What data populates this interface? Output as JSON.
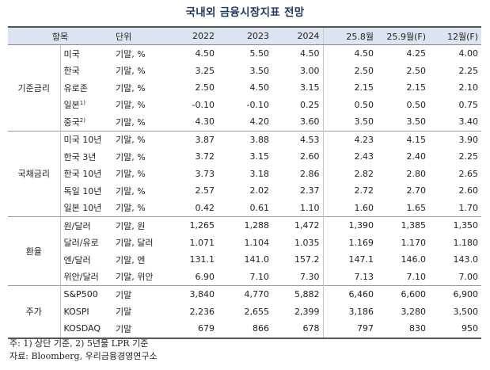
{
  "title": "국내외 금융시장지표 전망",
  "header": {
    "item": "항목",
    "unit": "단위",
    "cols": [
      "2022",
      "2023",
      "2024",
      "25.8월",
      "25.9월(F)",
      "12월(F)"
    ]
  },
  "groups": [
    {
      "name": "기준금리",
      "rows": [
        {
          "item": "미국",
          "sup": "",
          "unit": "기말, %",
          "values": [
            "4.50",
            "5.50",
            "4.50",
            "4.50",
            "4.25",
            "4.00"
          ]
        },
        {
          "item": "한국",
          "sup": "",
          "unit": "기말, %",
          "values": [
            "3.25",
            "3.50",
            "3.00",
            "2.50",
            "2.50",
            "2.25"
          ]
        },
        {
          "item": "유로존",
          "sup": "",
          "unit": "기말, %",
          "values": [
            "2.50",
            "4.50",
            "3.15",
            "2.15",
            "2.15",
            "2.10"
          ]
        },
        {
          "item": "일본",
          "sup": "1)",
          "unit": "기말, %",
          "values": [
            "-0.10",
            "-0.10",
            "0.25",
            "0.50",
            "0.50",
            "0.75"
          ]
        },
        {
          "item": "중국",
          "sup": "2)",
          "unit": "기말, %",
          "values": [
            "4.30",
            "4.20",
            "3.60",
            "3.50",
            "3.50",
            "3.40"
          ]
        }
      ]
    },
    {
      "name": "국채금리",
      "rows": [
        {
          "item": "미국 10년",
          "sup": "",
          "unit": "기말, %",
          "values": [
            "3.87",
            "3.88",
            "4.53",
            "4.23",
            "4.15",
            "3.90"
          ]
        },
        {
          "item": "한국 3년",
          "sup": "",
          "unit": "기말, %",
          "values": [
            "3.72",
            "3.15",
            "2.60",
            "2.43",
            "2.40",
            "2.25"
          ]
        },
        {
          "item": "한국 10년",
          "sup": "",
          "unit": "기말, %",
          "values": [
            "3.73",
            "3.18",
            "2.86",
            "2.82",
            "2.80",
            "2.65"
          ]
        },
        {
          "item": "독일 10년",
          "sup": "",
          "unit": "기말, %",
          "values": [
            "2.57",
            "2.02",
            "2.37",
            "2.72",
            "2.70",
            "2.60"
          ]
        },
        {
          "item": "일본 10년",
          "sup": "",
          "unit": "기말, %",
          "values": [
            "0.42",
            "0.61",
            "1.10",
            "1.60",
            "1.65",
            "1.70"
          ]
        }
      ]
    },
    {
      "name": "환율",
      "rows": [
        {
          "item": "원/달러",
          "sup": "",
          "unit": "기말, 원",
          "values": [
            "1,265",
            "1,288",
            "1,472",
            "1,390",
            "1,385",
            "1,350"
          ]
        },
        {
          "item": "달러/유로",
          "sup": "",
          "unit": "기말, 달러",
          "values": [
            "1.071",
            "1.104",
            "1.035",
            "1.169",
            "1.170",
            "1.180"
          ]
        },
        {
          "item": "엔/달러",
          "sup": "",
          "unit": "기말, 엔",
          "values": [
            "131.1",
            "141.0",
            "157.2",
            "147.1",
            "146.0",
            "143.0"
          ]
        },
        {
          "item": "위안/달러",
          "sup": "",
          "unit": "기말, 위안",
          "values": [
            "6.90",
            "7.10",
            "7.30",
            "7.13",
            "7.10",
            "7.00"
          ]
        }
      ]
    },
    {
      "name": "주가",
      "rows": [
        {
          "item": "S&P500",
          "sup": "",
          "unit": "기말",
          "values": [
            "3,840",
            "4,770",
            "5,882",
            "6,460",
            "6,600",
            "6,900"
          ]
        },
        {
          "item": "KOSPI",
          "sup": "",
          "unit": "기말",
          "values": [
            "2,236",
            "2,655",
            "2,399",
            "3,186",
            "3,280",
            "3,500"
          ]
        },
        {
          "item": "KOSDAQ",
          "sup": "",
          "unit": "기말",
          "values": [
            "679",
            "866",
            "678",
            "797",
            "830",
            "950"
          ]
        }
      ]
    }
  ],
  "notes": [
    "주: 1) 상단 기준, 2) 5년물 LPR 기준",
    "자료: Bloomberg, 우리금융경영연구소"
  ]
}
